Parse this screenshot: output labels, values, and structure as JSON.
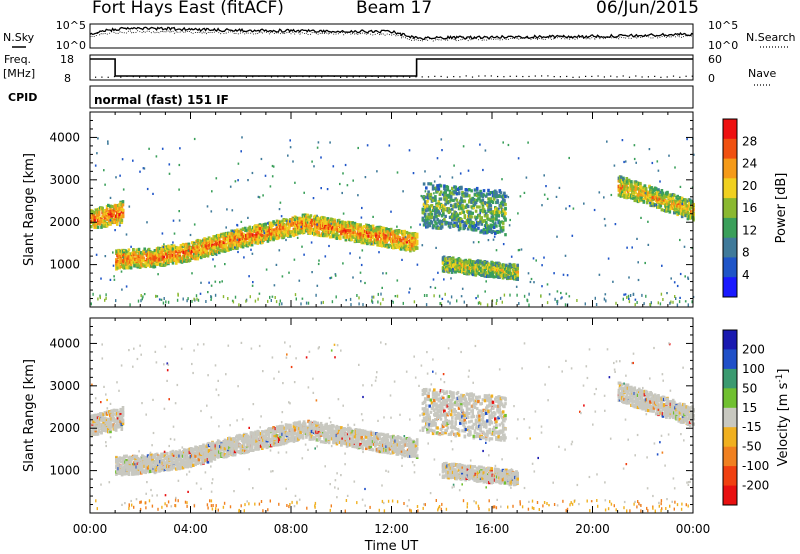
{
  "header": {
    "station": "Fort Hays East (fitACF)",
    "beam": "Beam 17",
    "date": "06/Jun/2015"
  },
  "left_labels": {
    "nsky": "N.Sky",
    "freq": "Freq.",
    "freq_unit": "[MHz]",
    "cpid": "CPID"
  },
  "right_labels": {
    "nsearch": "N.Search",
    "nave": "Nave"
  },
  "cpid_text": "normal (fast) 151 IF",
  "chart_data": [
    {
      "type": "line",
      "name": "noise-panel",
      "left_axis": {
        "ticks": [
          "10^5",
          "10^0"
        ]
      },
      "right_axis": {
        "ticks": [
          "10^5",
          "10^0"
        ]
      },
      "series": [
        {
          "name": "N.Sky",
          "x_hours": [
            0,
            0.5,
            1,
            2,
            3,
            4,
            5,
            6,
            8,
            10,
            12,
            13,
            14,
            16,
            18,
            20,
            22,
            24
          ],
          "y_frac": [
            0.55,
            0.72,
            0.78,
            0.82,
            0.8,
            0.78,
            0.75,
            0.74,
            0.72,
            0.7,
            0.68,
            0.4,
            0.42,
            0.45,
            0.47,
            0.48,
            0.52,
            0.58
          ]
        },
        {
          "name": "N.Search",
          "x_hours": [
            0,
            0.5,
            1,
            2,
            4,
            6,
            8,
            10,
            12,
            13,
            14,
            16,
            18,
            20,
            22,
            24
          ],
          "y_frac": [
            0.45,
            0.6,
            0.65,
            0.68,
            0.66,
            0.63,
            0.62,
            0.6,
            0.58,
            0.32,
            0.35,
            0.38,
            0.4,
            0.42,
            0.45,
            0.5
          ]
        }
      ]
    },
    {
      "type": "line",
      "name": "frequency-panel",
      "left_axis": {
        "ticks": [
          "18",
          "8"
        ],
        "range": [
          8,
          18
        ]
      },
      "right_axis": {
        "ticks": [
          "60",
          "0"
        ],
        "range": [
          0,
          60
        ]
      },
      "series": [
        {
          "name": "Freq.",
          "x_hours": [
            0,
            1,
            1,
            13,
            13,
            24
          ],
          "y": [
            18,
            18,
            8,
            8,
            18,
            18
          ]
        },
        {
          "name": "Nave",
          "level": 8
        }
      ]
    },
    {
      "type": "heatmap",
      "name": "power-panel",
      "ylabel": "Slant Range [km]",
      "y_ticks": [
        1000,
        2000,
        3000,
        4000
      ],
      "ylim": [
        0,
        4600
      ],
      "xlim_hours": [
        0,
        24
      ],
      "colorbar": {
        "label": "Power [dB]",
        "ticks": [
          4,
          8,
          12,
          16,
          20,
          24,
          28
        ],
        "range": [
          0,
          32
        ],
        "colors": [
          "#1a1aff",
          "#1f55c8",
          "#3f7a9a",
          "#3a9f5a",
          "#8ab830",
          "#f0d020",
          "#f59a18",
          "#f05010",
          "#ee1010"
        ]
      },
      "echo_bands": [
        {
          "t": [
            0,
            1.3
          ],
          "r0": [
            2300,
            2500
          ],
          "r1": [
            1900,
            2050
          ],
          "level": 0.85
        },
        {
          "t": [
            1,
            13
          ],
          "center": [
            1150,
            1200,
            1350,
            1600,
            1800,
            2000,
            1850,
            1700,
            1550
          ],
          "width": 380,
          "level": 0.82
        },
        {
          "t": [
            13.2,
            16.5
          ],
          "r0": [
            2900,
            2700
          ],
          "r1": [
            2000,
            1800
          ],
          "level": 0.45
        },
        {
          "t": [
            14,
            17
          ],
          "center": [
            1050,
            850
          ],
          "width": 300,
          "level": 0.6
        },
        {
          "t": [
            21,
            24
          ],
          "center": [
            2900,
            2300
          ],
          "width": 400,
          "level": 0.7
        }
      ]
    },
    {
      "type": "heatmap",
      "name": "velocity-panel",
      "ylabel": "Slant Range [km]",
      "y_ticks": [
        1000,
        2000,
        3000,
        4000
      ],
      "ylim": [
        0,
        4600
      ],
      "xlim_hours": [
        0,
        24
      ],
      "colorbar": {
        "label": "Velocity [m s^-1]",
        "label_main": "Velocity [m s",
        "label_sup": "-1",
        "label_end": "]",
        "ticks": [
          200,
          100,
          50,
          15,
          -15,
          -50,
          -100,
          -200
        ],
        "colors": [
          "#1a1ab0",
          "#2050c8",
          "#3a9a70",
          "#70c030",
          "#c8c8c0",
          "#f0b020",
          "#f08020",
          "#f04010",
          "#e81010"
        ]
      }
    }
  ],
  "x_axis": {
    "ticks": [
      "00:00",
      "04:00",
      "08:00",
      "12:00",
      "16:00",
      "20:00",
      "00:00"
    ],
    "label": "Time UT"
  },
  "colors": {
    "gray_scatter": "#c8c8c0",
    "axis": "#000000"
  }
}
